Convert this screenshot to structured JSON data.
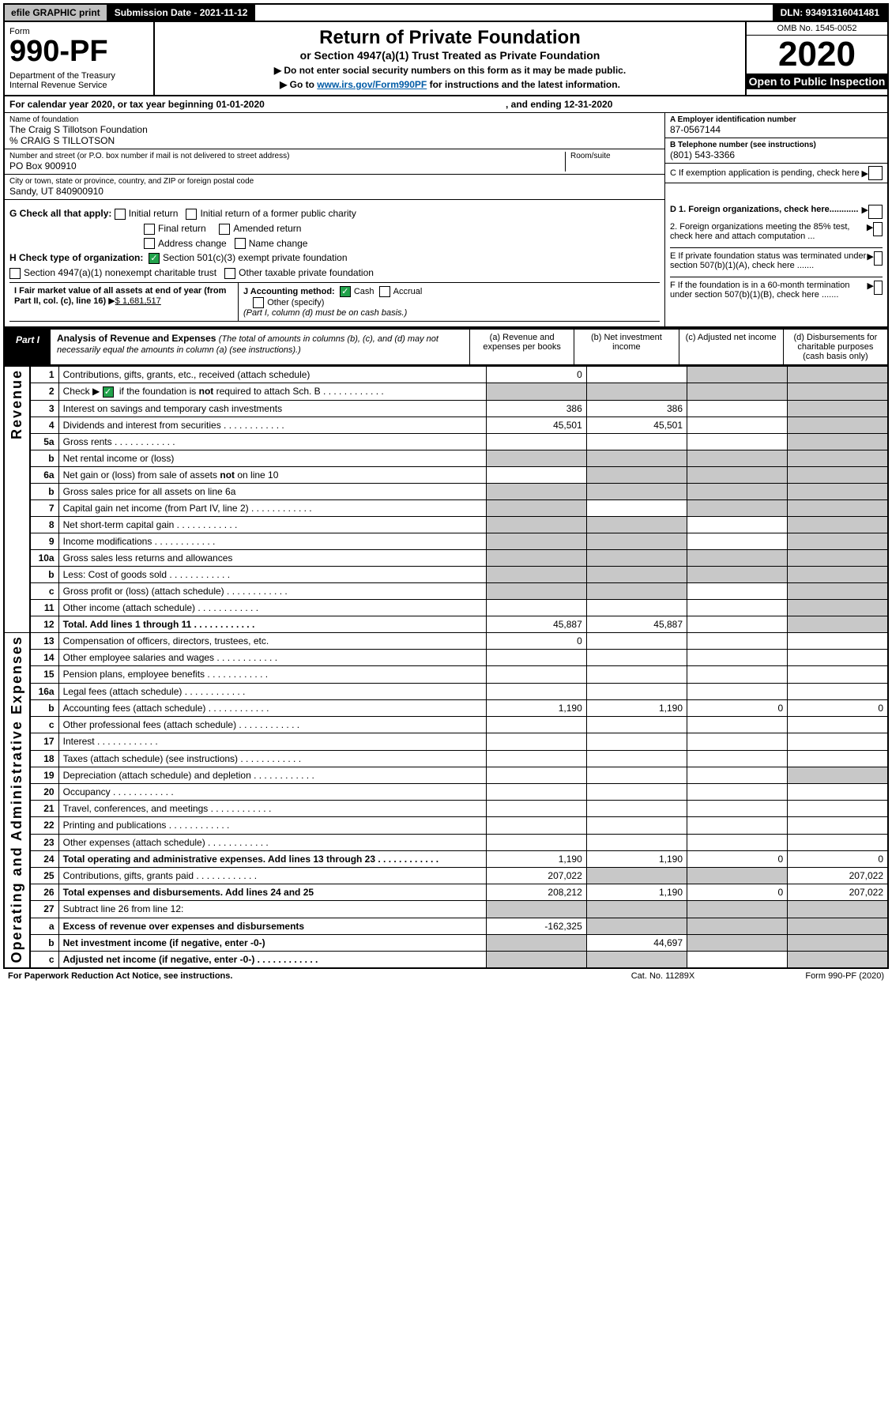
{
  "topBar": {
    "efile": "efile GRAPHIC print",
    "subDate": "Submission Date - 2021-11-12",
    "dln": "DLN: 93491316041481"
  },
  "header": {
    "formLabel": "Form",
    "formNumber": "990-PF",
    "dept": "Department of the Treasury\nInternal Revenue Service",
    "title": "Return of Private Foundation",
    "subtitle": "or Section 4947(a)(1) Trust Treated as Private Foundation",
    "instruct1": "▶ Do not enter social security numbers on this form as it may be made public.",
    "instruct2": "▶ Go to",
    "link": "www.irs.gov/Form990PF",
    "instruct2b": "for instructions and the latest information.",
    "omb": "OMB No. 1545-0052",
    "year": "2020",
    "open": "Open to Public Inspection"
  },
  "calYear": {
    "text1": "For calendar year 2020, or tax year beginning 01-01-2020",
    "text2": ", and ending 12-31-2020"
  },
  "info": {
    "nameLabel": "Name of foundation",
    "name": "The Craig S Tillotson Foundation",
    "care": "% CRAIG S TILLOTSON",
    "addrLabel": "Number and street (or P.O. box number if mail is not delivered to street address)",
    "addr": "PO Box 900910",
    "roomLabel": "Room/suite",
    "cityLabel": "City or town, state or province, country, and ZIP or foreign postal code",
    "city": "Sandy, UT  840900910",
    "einLabel": "A Employer identification number",
    "ein": "87-0567144",
    "telLabel": "B Telephone number (see instructions)",
    "tel": "(801) 543-3366",
    "cLabel": "C If exemption application is pending, check here"
  },
  "checks": {
    "g": "G Check all that apply:",
    "gOpts": [
      "Initial return",
      "Initial return of a former public charity",
      "Final return",
      "Amended return",
      "Address change",
      "Name change"
    ],
    "h": "H Check type of organization:",
    "h1": "Section 501(c)(3) exempt private foundation",
    "h2": "Section 4947(a)(1) nonexempt charitable trust",
    "h3": "Other taxable private foundation",
    "i": "I Fair market value of all assets at end of year (from Part II, col. (c), line 16)",
    "iVal": "$  1,681,517",
    "j": "J Accounting method:",
    "jCash": "Cash",
    "jAccrual": "Accrual",
    "jOther": "Other (specify)",
    "jNote": "(Part I, column (d) must be on cash basis.)",
    "d1": "D 1. Foreign organizations, check here............",
    "d2": "2. Foreign organizations meeting the 85% test, check here and attach computation ...",
    "e": "E  If private foundation status was terminated under section 507(b)(1)(A), check here .......",
    "f": "F  If the foundation is in a 60-month termination under section 507(b)(1)(B), check here ......."
  },
  "part1": {
    "label": "Part I",
    "title": "Analysis of Revenue and Expenses",
    "note": "(The total of amounts in columns (b), (c), and (d) may not necessarily equal the amounts in column (a) (see instructions).)",
    "colA": "(a)   Revenue and expenses per books",
    "colB": "(b)   Net investment income",
    "colC": "(c)   Adjusted net income",
    "colD": "(d)   Disbursements for charitable purposes (cash basis only)"
  },
  "sideLabels": {
    "revenue": "Revenue",
    "expenses": "Operating and Administrative Expenses"
  },
  "lines": [
    {
      "n": "1",
      "label": "Contributions, gifts, grants, etc., received (attach schedule)",
      "a": "0",
      "b": "",
      "c": "shade",
      "d": "shade"
    },
    {
      "n": "2",
      "label": "Check ▶ ☑ if the foundation is not required to attach Sch. B",
      "a": "shade",
      "b": "shade",
      "c": "shade",
      "d": "shade",
      "dots": true
    },
    {
      "n": "3",
      "label": "Interest on savings and temporary cash investments",
      "a": "386",
      "b": "386",
      "c": "",
      "d": "shade"
    },
    {
      "n": "4",
      "label": "Dividends and interest from securities",
      "a": "45,501",
      "b": "45,501",
      "c": "",
      "d": "shade",
      "dots": true
    },
    {
      "n": "5a",
      "label": "Gross rents",
      "a": "",
      "b": "",
      "c": "",
      "d": "shade",
      "dots": true
    },
    {
      "n": "b",
      "label": "Net rental income or (loss)",
      "a": "shade",
      "b": "shade",
      "c": "shade",
      "d": "shade"
    },
    {
      "n": "6a",
      "label": "Net gain or (loss) from sale of assets not on line 10",
      "a": "",
      "b": "shade",
      "c": "shade",
      "d": "shade"
    },
    {
      "n": "b",
      "label": "Gross sales price for all assets on line 6a",
      "a": "shade",
      "b": "shade",
      "c": "shade",
      "d": "shade"
    },
    {
      "n": "7",
      "label": "Capital gain net income (from Part IV, line 2)",
      "a": "shade",
      "b": "",
      "c": "shade",
      "d": "shade",
      "dots": true
    },
    {
      "n": "8",
      "label": "Net short-term capital gain",
      "a": "shade",
      "b": "shade",
      "c": "",
      "d": "shade",
      "dots": true
    },
    {
      "n": "9",
      "label": "Income modifications",
      "a": "shade",
      "b": "shade",
      "c": "",
      "d": "shade",
      "dots": true
    },
    {
      "n": "10a",
      "label": "Gross sales less returns and allowances",
      "a": "shade",
      "b": "shade",
      "c": "shade",
      "d": "shade"
    },
    {
      "n": "b",
      "label": "Less: Cost of goods sold",
      "a": "shade",
      "b": "shade",
      "c": "shade",
      "d": "shade",
      "dots": true
    },
    {
      "n": "c",
      "label": "Gross profit or (loss) (attach schedule)",
      "a": "shade",
      "b": "shade",
      "c": "",
      "d": "shade",
      "dots": true
    },
    {
      "n": "11",
      "label": "Other income (attach schedule)",
      "a": "",
      "b": "",
      "c": "",
      "d": "shade",
      "dots": true
    },
    {
      "n": "12",
      "label": "Total. Add lines 1 through 11",
      "a": "45,887",
      "b": "45,887",
      "c": "",
      "d": "shade",
      "bold": true,
      "dots": true
    },
    {
      "n": "13",
      "label": "Compensation of officers, directors, trustees, etc.",
      "a": "0",
      "b": "",
      "c": "",
      "d": ""
    },
    {
      "n": "14",
      "label": "Other employee salaries and wages",
      "a": "",
      "b": "",
      "c": "",
      "d": "",
      "dots": true
    },
    {
      "n": "15",
      "label": "Pension plans, employee benefits",
      "a": "",
      "b": "",
      "c": "",
      "d": "",
      "dots": true
    },
    {
      "n": "16a",
      "label": "Legal fees (attach schedule)",
      "a": "",
      "b": "",
      "c": "",
      "d": "",
      "dots": true
    },
    {
      "n": "b",
      "label": "Accounting fees (attach schedule)",
      "a": "1,190",
      "b": "1,190",
      "c": "0",
      "d": "0",
      "dots": true
    },
    {
      "n": "c",
      "label": "Other professional fees (attach schedule)",
      "a": "",
      "b": "",
      "c": "",
      "d": "",
      "dots": true
    },
    {
      "n": "17",
      "label": "Interest",
      "a": "",
      "b": "",
      "c": "",
      "d": "",
      "dots": true
    },
    {
      "n": "18",
      "label": "Taxes (attach schedule) (see instructions)",
      "a": "",
      "b": "",
      "c": "",
      "d": "",
      "dots": true
    },
    {
      "n": "19",
      "label": "Depreciation (attach schedule) and depletion",
      "a": "",
      "b": "",
      "c": "",
      "d": "shade",
      "dots": true
    },
    {
      "n": "20",
      "label": "Occupancy",
      "a": "",
      "b": "",
      "c": "",
      "d": "",
      "dots": true
    },
    {
      "n": "21",
      "label": "Travel, conferences, and meetings",
      "a": "",
      "b": "",
      "c": "",
      "d": "",
      "dots": true
    },
    {
      "n": "22",
      "label": "Printing and publications",
      "a": "",
      "b": "",
      "c": "",
      "d": "",
      "dots": true
    },
    {
      "n": "23",
      "label": "Other expenses (attach schedule)",
      "a": "",
      "b": "",
      "c": "",
      "d": "",
      "dots": true
    },
    {
      "n": "24",
      "label": "Total operating and administrative expenses. Add lines 13 through 23",
      "a": "1,190",
      "b": "1,190",
      "c": "0",
      "d": "0",
      "bold": true,
      "dots": true
    },
    {
      "n": "25",
      "label": "Contributions, gifts, grants paid",
      "a": "207,022",
      "b": "shade",
      "c": "shade",
      "d": "207,022",
      "dots": true
    },
    {
      "n": "26",
      "label": "Total expenses and disbursements. Add lines 24 and 25",
      "a": "208,212",
      "b": "1,190",
      "c": "0",
      "d": "207,022",
      "bold": true
    },
    {
      "n": "27",
      "label": "Subtract line 26 from line 12:",
      "a": "shade",
      "b": "shade",
      "c": "shade",
      "d": "shade"
    },
    {
      "n": "a",
      "label": "Excess of revenue over expenses and disbursements",
      "a": "-162,325",
      "b": "shade",
      "c": "shade",
      "d": "shade",
      "bold": true
    },
    {
      "n": "b",
      "label": "Net investment income (if negative, enter -0-)",
      "a": "shade",
      "b": "44,697",
      "c": "shade",
      "d": "shade",
      "bold": true
    },
    {
      "n": "c",
      "label": "Adjusted net income (if negative, enter -0-)",
      "a": "shade",
      "b": "shade",
      "c": "",
      "d": "shade",
      "bold": true,
      "dots": true
    }
  ],
  "footer": {
    "left": "For Paperwork Reduction Act Notice, see instructions.",
    "mid": "Cat. No. 11289X",
    "right": "Form 990-PF (2020)"
  },
  "colors": {
    "shade": "#c8c8c8",
    "link": "#005ba6",
    "check": "#22a24b"
  }
}
